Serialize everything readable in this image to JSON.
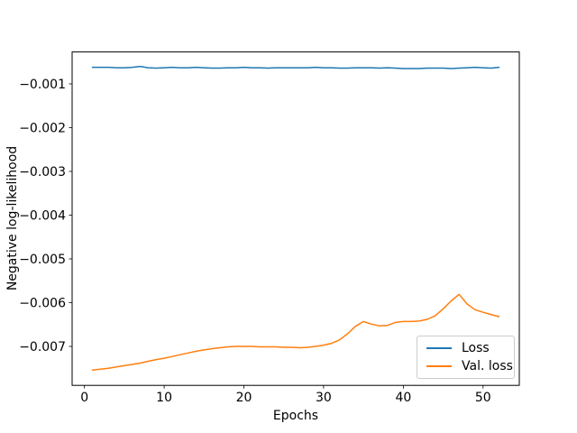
{
  "figure": {
    "background": "#ffffff"
  },
  "chart_data": {
    "type": "line",
    "title": "",
    "xlabel": "Epochs",
    "ylabel": "Negative log-likelihood",
    "grid": false,
    "legend_position": "lower right",
    "xlim": [
      -1.55,
      54.55
    ],
    "ylim": [
      -0.00789,
      -0.00027
    ],
    "xticks": [
      0,
      10,
      20,
      30,
      40,
      50
    ],
    "yticks": [
      -0.007,
      -0.006,
      -0.005,
      -0.004,
      -0.003,
      -0.002,
      -0.001
    ],
    "x": [
      1,
      2,
      3,
      4,
      5,
      6,
      7,
      8,
      9,
      10,
      11,
      12,
      13,
      14,
      15,
      16,
      17,
      18,
      19,
      20,
      21,
      22,
      23,
      24,
      25,
      26,
      27,
      28,
      29,
      30,
      31,
      32,
      33,
      34,
      35,
      36,
      37,
      38,
      39,
      40,
      41,
      42,
      43,
      44,
      45,
      46,
      47,
      48,
      49,
      50,
      51,
      52
    ],
    "series": [
      {
        "name": "Loss",
        "color": "#1f77b4",
        "values": [
          -0.00062,
          -0.00062,
          -0.00062,
          -0.00063,
          -0.00063,
          -0.00062,
          -0.0006,
          -0.00063,
          -0.00064,
          -0.00063,
          -0.00062,
          -0.00063,
          -0.00063,
          -0.00062,
          -0.00063,
          -0.00064,
          -0.00064,
          -0.00063,
          -0.00063,
          -0.00062,
          -0.00063,
          -0.00063,
          -0.00064,
          -0.00063,
          -0.00063,
          -0.00063,
          -0.00063,
          -0.00063,
          -0.00062,
          -0.00063,
          -0.00063,
          -0.00064,
          -0.00064,
          -0.00063,
          -0.00063,
          -0.00063,
          -0.00064,
          -0.00063,
          -0.00064,
          -0.00065,
          -0.00065,
          -0.00065,
          -0.00064,
          -0.00064,
          -0.00064,
          -0.00065,
          -0.00064,
          -0.00063,
          -0.00062,
          -0.00063,
          -0.00064,
          -0.00062
        ]
      },
      {
        "name": "Val. loss",
        "color": "#ff7f0e",
        "values": [
          -0.00754,
          -0.00752,
          -0.0075,
          -0.00747,
          -0.00744,
          -0.00741,
          -0.00738,
          -0.00734,
          -0.0073,
          -0.00727,
          -0.00723,
          -0.00719,
          -0.00715,
          -0.00711,
          -0.00708,
          -0.00705,
          -0.00703,
          -0.00701,
          -0.007,
          -0.007,
          -0.007,
          -0.00701,
          -0.00701,
          -0.00701,
          -0.00702,
          -0.00702,
          -0.00703,
          -0.00702,
          -0.007,
          -0.00697,
          -0.00693,
          -0.00685,
          -0.00671,
          -0.00654,
          -0.00643,
          -0.00649,
          -0.00653,
          -0.00652,
          -0.00645,
          -0.00643,
          -0.00643,
          -0.00642,
          -0.00638,
          -0.0063,
          -0.00614,
          -0.00596,
          -0.00581,
          -0.00603,
          -0.00616,
          -0.00622,
          -0.00627,
          -0.00632
        ]
      }
    ]
  },
  "legend": {
    "items": [
      {
        "label": "Loss",
        "color": "#1f77b4"
      },
      {
        "label": "Val. loss",
        "color": "#ff7f0e"
      }
    ]
  }
}
